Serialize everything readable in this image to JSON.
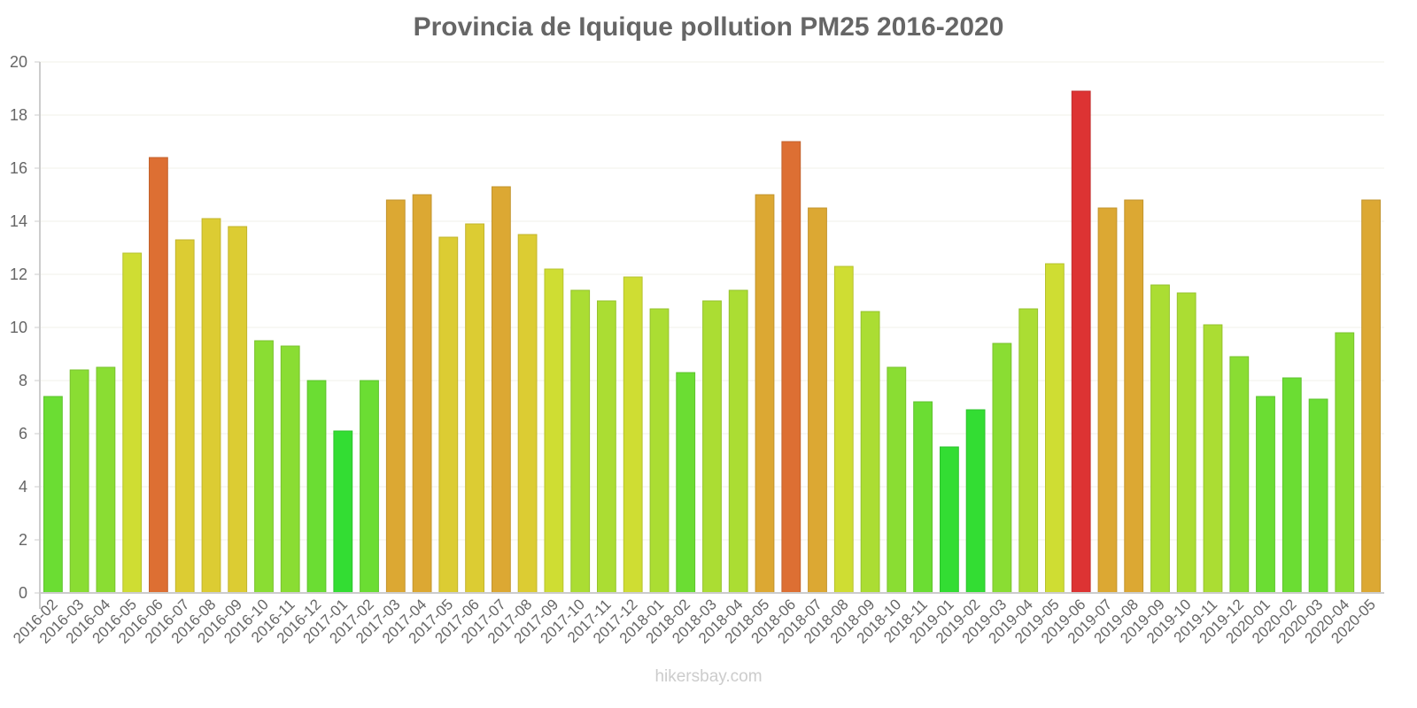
{
  "chart_data": {
    "type": "bar",
    "title": "Provincia de Iquique pollution PM25 2016-2020",
    "xlabel": "",
    "ylabel": "",
    "ylim": [
      0,
      20
    ],
    "yticks": [
      0,
      2,
      4,
      6,
      8,
      10,
      12,
      14,
      16,
      18,
      20
    ],
    "grid": true,
    "legend": null,
    "categories": [
      "2016-02",
      "2016-03",
      "2016-04",
      "2016-05",
      "2016-06",
      "2016-07",
      "2016-08",
      "2016-09",
      "2016-10",
      "2016-11",
      "2016-12",
      "2017-01",
      "2017-02",
      "2017-03",
      "2017-04",
      "2017-05",
      "2017-06",
      "2017-07",
      "2017-08",
      "2017-09",
      "2017-10",
      "2017-11",
      "2017-12",
      "2018-01",
      "2018-02",
      "2018-03",
      "2018-04",
      "2018-05",
      "2018-06",
      "2018-07",
      "2018-08",
      "2018-09",
      "2018-10",
      "2018-11",
      "2019-01",
      "2019-02",
      "2019-03",
      "2019-04",
      "2019-05",
      "2019-06",
      "2019-07",
      "2019-08",
      "2019-09",
      "2019-10",
      "2019-11",
      "2019-12",
      "2020-01",
      "2020-02",
      "2020-03",
      "2020-04",
      "2020-05"
    ],
    "values": [
      7.4,
      8.4,
      8.5,
      12.8,
      16.4,
      13.3,
      14.1,
      13.8,
      9.5,
      9.3,
      8.0,
      6.1,
      8.0,
      14.8,
      15.0,
      13.4,
      13.9,
      15.3,
      13.5,
      12.2,
      11.4,
      11.0,
      11.9,
      10.7,
      8.3,
      11.0,
      11.4,
      15.0,
      17.0,
      14.5,
      12.3,
      10.6,
      8.5,
      7.2,
      5.5,
      6.9,
      9.4,
      10.7,
      12.4,
      18.9,
      14.5,
      14.8,
      11.6,
      11.3,
      10.1,
      8.9,
      7.4,
      8.1,
      7.3,
      9.8,
      14.8
    ],
    "color_scale": {
      "lowest": "#33dd33",
      "low": "#6bdd33",
      "low_mid": "#8add33",
      "mid_green": "#abdd33",
      "mid": "#cfdd33",
      "yellow": "#dccc33",
      "amber": "#dca833",
      "orange": "#dd6f33",
      "red": "#dd3333"
    }
  },
  "watermark": "hikersbay.com"
}
